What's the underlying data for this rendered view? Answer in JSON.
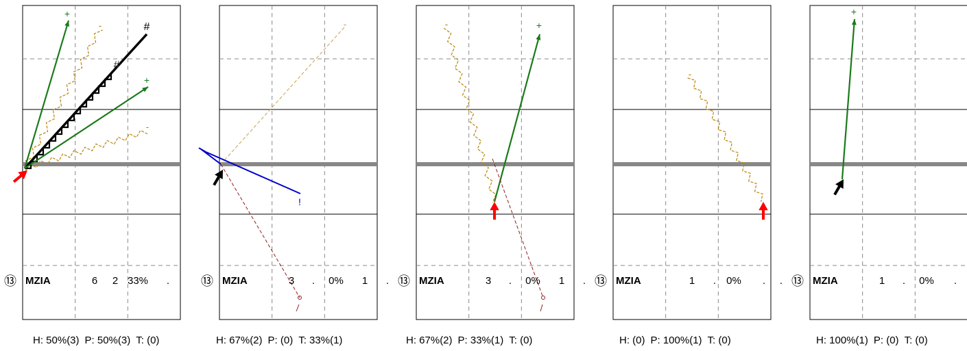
{
  "panels": [
    {
      "circle_label": "⑬",
      "team": "MZIA",
      "stats": [
        "6",
        "2",
        "33%",
        "."
      ],
      "summary": {
        "h": "H: 50%(3)",
        "p": "P: 50%(3)",
        "t": "T: (0)"
      },
      "marks": [
        {
          "kind": "arrow",
          "color": "#1a7a1a",
          "label": "+"
        },
        {
          "kind": "arrow",
          "color": "#1a7a1a",
          "label": "+"
        },
        {
          "kind": "zigzag",
          "color": "#b8860b",
          "label": "-"
        },
        {
          "kind": "zigzag",
          "color": "#b8860b",
          "label": "-"
        },
        {
          "kind": "stairs",
          "color": "#000000",
          "label": "#"
        },
        {
          "kind": "stairs",
          "color": "#000000",
          "label": "#"
        }
      ],
      "pointer": {
        "color": "#ff0000"
      }
    },
    {
      "circle_label": "⑬",
      "team": "MZIA",
      "stats": [
        "3",
        ".",
        "0%",
        "1",
        "."
      ],
      "summary": {
        "h": "H: 67%(2)",
        "p": "P: (0)",
        "t": "T: 33%(1)"
      },
      "marks": [
        {
          "kind": "dashed",
          "color": "#c8a050",
          "label": "-"
        },
        {
          "kind": "curve",
          "color": "#0000cc",
          "label": "!"
        },
        {
          "kind": "dashed-end",
          "color": "#8b2020",
          "label": ""
        }
      ],
      "pointer": {
        "color": "#000000"
      }
    },
    {
      "circle_label": "⑬",
      "team": "MZIA",
      "stats": [
        "3",
        ".",
        "0%",
        "1",
        "."
      ],
      "summary": {
        "h": "H: 67%(2)",
        "p": "P: 33%(1)",
        "t": "T: (0)"
      },
      "marks": [
        {
          "kind": "zigzag",
          "color": "#b8860b",
          "label": "-"
        },
        {
          "kind": "arrow",
          "color": "#1a7a1a",
          "label": "+"
        },
        {
          "kind": "dashed-end",
          "color": "#8b2020",
          "label": ""
        }
      ],
      "pointer": {
        "color": "#ff0000"
      }
    },
    {
      "circle_label": "⑬",
      "team": "MZIA",
      "stats": [
        "1",
        ".",
        "0%",
        ".",
        "."
      ],
      "summary": {
        "h": "H: (0)",
        "p": "P: 100%(1)",
        "t": "T: (0)"
      },
      "marks": [
        {
          "kind": "zigzag",
          "color": "#b8860b",
          "label": "-"
        }
      ],
      "pointer": {
        "color": "#ff0000"
      }
    },
    {
      "circle_label": "⑬",
      "team": "MZIA",
      "stats": [
        "1",
        ".",
        "0%",
        "."
      ],
      "summary": {
        "h": "H: 100%(1)",
        "p": "P: (0)",
        "t": "T: (0)"
      },
      "marks": [
        {
          "kind": "arrow",
          "color": "#1a7a1a",
          "label": "+"
        }
      ],
      "pointer": {
        "color": "#000000"
      }
    }
  ]
}
